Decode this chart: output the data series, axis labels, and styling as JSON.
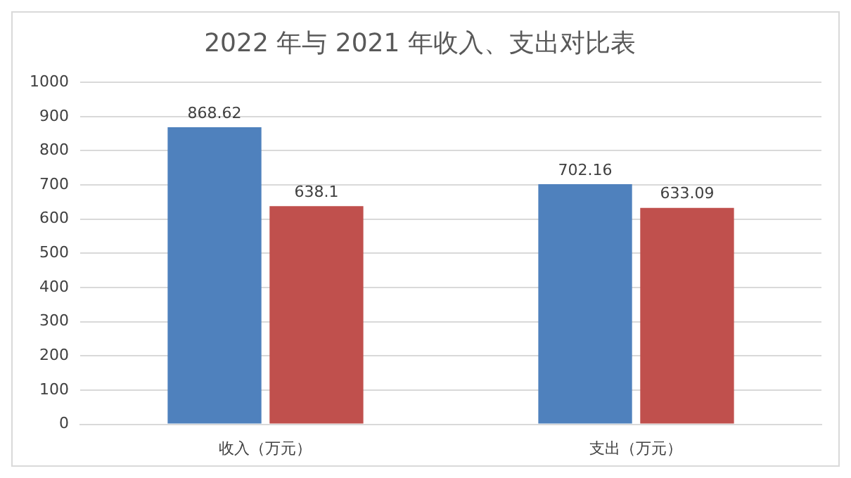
{
  "chart_data": {
    "type": "bar",
    "title": "2022 年与 2021 年收入、支出对比表",
    "categories": [
      "收入（万元）",
      "支出（万元）"
    ],
    "series": [
      {
        "color": "#4f81bd",
        "values": [
          868.62,
          702.16
        ]
      },
      {
        "color": "#c0504d",
        "values": [
          638.1,
          633.09
        ]
      }
    ],
    "ylim": [
      0,
      1000
    ],
    "yticks": [
      0,
      100,
      200,
      300,
      400,
      500,
      600,
      700,
      800,
      900,
      1000
    ],
    "grid": "y",
    "data_labels": true,
    "legend": false
  }
}
